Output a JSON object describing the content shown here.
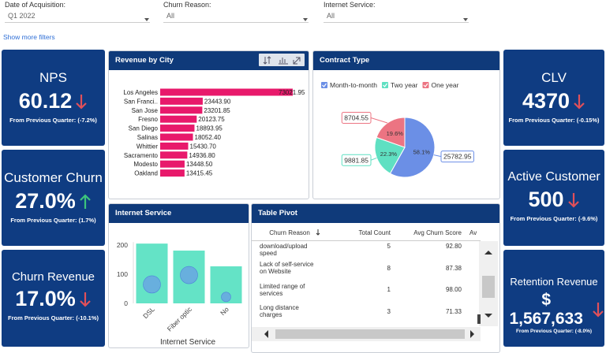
{
  "filters": [
    {
      "label": "Date of Acquisition:",
      "value": "Q1 2022"
    },
    {
      "label": "Churn Reason:",
      "value": "All"
    },
    {
      "label": "Internet Service:",
      "value": "All"
    }
  ],
  "show_more_filters": "Show more filters",
  "kpis": [
    {
      "title": "NPS",
      "value": "60.12",
      "trend": "down",
      "trend_color": "#e0505a",
      "change": "From Previous Quarter: (-7.2%)"
    },
    {
      "title": "Customer Churn",
      "value": "27.0%",
      "trend": "up",
      "trend_color": "#3cc47c",
      "change": "From Previous Quarter: (1.7%)"
    },
    {
      "title": "Churn Revenue",
      "value": "17.0%",
      "trend": "down",
      "trend_color": "#e0505a",
      "change": "From Previous Quarter: (-10.1%)"
    },
    {
      "title": "CLV",
      "value": "4370",
      "trend": "down",
      "trend_color": "#e0505a",
      "change": "From Previous Quarter: (-0.15%)"
    },
    {
      "title": "Active Customer",
      "value": "500",
      "trend": "down",
      "trend_color": "#e0505a",
      "change": "From Previous Quarter: (-9.6%)"
    },
    {
      "title": "Retention Revenue",
      "value": "$ 1,567,633",
      "trend": "down",
      "trend_color": "#e0505a",
      "change": "From Previous Quarter: (-8.0%)"
    }
  ],
  "chart_data": [
    {
      "type": "bar",
      "orientation": "horizontal",
      "title": "Revenue by City",
      "color": "#e8196b",
      "categories": [
        "Los Angeles",
        "San Franci..",
        "San Jose",
        "Fresno",
        "San Diego",
        "Salinas",
        "Whittier",
        "Sacramento",
        "Modesto",
        "Oakland"
      ],
      "values": [
        73021.95,
        23443.9,
        23201.85,
        20123.75,
        18893.95,
        18052.4,
        15430.7,
        14936.8,
        13448.5,
        13415.45
      ],
      "value_labels": [
        "73021.95",
        "23443.90",
        "23201.85",
        "20123.75",
        "18893.95",
        "18052.40",
        "15430.70",
        "14936.80",
        "13448.50",
        "13415.45"
      ]
    },
    {
      "type": "pie",
      "title": "Contract Type",
      "categories": [
        "Month-to-month",
        "Two year",
        "One year"
      ],
      "colors": [
        "#6b8fe6",
        "#5fe0c2",
        "#ec7482"
      ],
      "values": [
        25782.95,
        9881.85,
        8704.55
      ],
      "percents": [
        58.1,
        22.3,
        19.6
      ],
      "percent_labels": [
        "58.1%",
        "22.3%",
        "19.6%"
      ]
    },
    {
      "type": "bar",
      "title": "Internet Service",
      "xlabel": "Internet Service",
      "color": "#64e3c6",
      "categories": [
        "DSL",
        "Fiber optic",
        "No"
      ],
      "values": [
        205,
        181,
        127
      ],
      "ylim": [
        0,
        210
      ],
      "yticks": [
        0,
        100,
        200
      ],
      "bubbles": {
        "color": "#6a9ee6",
        "values": [
          65,
          97,
          22
        ],
        "sizes": [
          11,
          11,
          6
        ]
      }
    }
  ],
  "table": {
    "title": "Table Pivot",
    "columns": [
      "Churn Reason",
      "Total Count",
      "Avg Churn Score",
      "Av"
    ],
    "rows": [
      [
        "Lack of affordable download/upload speed",
        "5",
        "92.80"
      ],
      [
        "Lack of self-service on Website",
        "8",
        "87.38"
      ],
      [
        "Limited range of services",
        "1",
        "98.00"
      ],
      [
        "Long distance charges",
        "3",
        "71.33"
      ]
    ]
  }
}
